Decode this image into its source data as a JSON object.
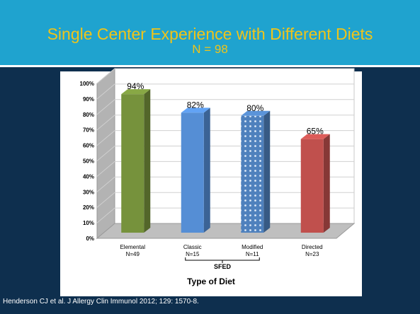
{
  "slide": {
    "title": "Single Center Experience with Different Diets",
    "subtitle": "N = 98",
    "footer": "Henderson CJ et al. J Allergy Clin Immunol 2012; 129: 1570-8."
  },
  "chart_data": {
    "type": "bar",
    "categories": [
      "Elemental",
      "Classic",
      "Modified",
      "Directed"
    ],
    "category_counts": [
      "N=49",
      "N=15",
      "N=11",
      "N=23"
    ],
    "values": [
      94,
      82,
      80,
      65
    ],
    "value_labels": [
      "94%",
      "82%",
      "80%",
      "65%"
    ],
    "bar_colors": [
      "#76923c",
      "#558ed5",
      "#4f81bd",
      "#c0504d"
    ],
    "bar_patterns": [
      "solid",
      "solid",
      "dotted",
      "solid"
    ],
    "ylim": [
      0,
      100
    ],
    "y_ticks": [
      "0%",
      "10%",
      "20%",
      "30%",
      "40%",
      "50%",
      "60%",
      "70%",
      "80%",
      "90%",
      "100%"
    ],
    "xlabel": "Type of Diet",
    "group_label": "SFED",
    "grid": true,
    "style": "3d-column"
  }
}
